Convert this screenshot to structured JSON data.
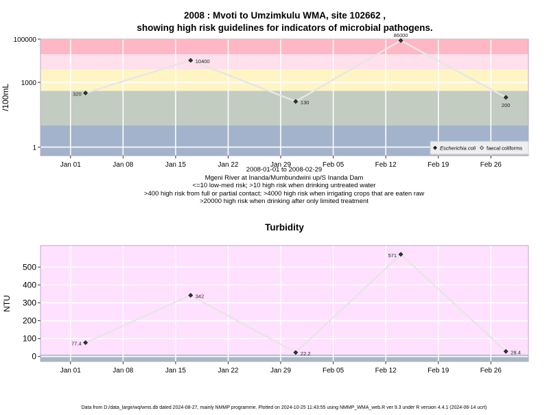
{
  "title": {
    "line1": "2008 : Mvoti to Umzimkulu WMA, site 102662 ,",
    "line2": "showing high risk guidelines for indicators of microbial pathogens."
  },
  "captions": {
    "dates": "2008-01-01 to 2008-02-29",
    "location": "Mgeni River at Inanda/Mumbundwini up/S Inanda Dam",
    "risk1": "<=10 low-med risk; >10 high risk when drinking untreated water",
    "risk2": ">400 high risk from full or partial contact; >4000 high risk when irrigating crops that are eaten raw",
    "risk3": ">20000 high risk when drinking after only limited treatment"
  },
  "footer": "Data from D:/data_large/wq/wms.db dated 2024-08-27, mainly NMMP programme. Plotted on 2024-10-25 11:43:55 using NMMP_WMA_web.R ver 9.3 under R version 4.4.1 (2024-06-14 ucrt)",
  "colors": {
    "band_low": "#a3b3cb",
    "band_green": "#c2ccc0",
    "band_yellow": "#fff5c4",
    "band_pink_light": "#ffe0ec",
    "band_red": "#ffb7c4",
    "turbidity_bg": "#ffe0ff",
    "turbidity_base": "#a9b8c6",
    "line": "#e6e6e6",
    "point": "#333333"
  },
  "chart_data": [
    {
      "type": "line",
      "title": "",
      "ylabel": "/100mL",
      "y_scale": "log10",
      "ylim": [
        0.4,
        100000
      ],
      "xlim": [
        "2007-12-28",
        "2008-03-02"
      ],
      "x_ticks": [
        {
          "date": "2008-01-01",
          "label": "Jan 01"
        },
        {
          "date": "2008-01-08",
          "label": "Jan 08"
        },
        {
          "date": "2008-01-15",
          "label": "Jan 15"
        },
        {
          "date": "2008-01-22",
          "label": "Jan 22"
        },
        {
          "date": "2008-01-29",
          "label": "Jan 29"
        },
        {
          "date": "2008-02-05",
          "label": "Feb 05"
        },
        {
          "date": "2008-02-12",
          "label": "Feb 12"
        },
        {
          "date": "2008-02-19",
          "label": "Feb 19"
        },
        {
          "date": "2008-02-26",
          "label": "Feb 26"
        }
      ],
      "y_ticks": [
        {
          "value": 1,
          "label": "1"
        },
        {
          "value": 1000,
          "label": "1000"
        },
        {
          "value": 100000,
          "label": "100000"
        }
      ],
      "bands": [
        {
          "from": 0.4,
          "to": 10,
          "color": "band_low"
        },
        {
          "from": 10,
          "to": 400,
          "color": "band_green"
        },
        {
          "from": 400,
          "to": 4000,
          "color": "band_yellow"
        },
        {
          "from": 4000,
          "to": 20000,
          "color": "band_pink_light"
        },
        {
          "from": 20000,
          "to": 100000,
          "color": "band_red"
        }
      ],
      "series": [
        {
          "name": "Escherichia coli",
          "points": [
            {
              "x": "2008-01-03",
              "y": 320,
              "label": "320",
              "label_side": "left"
            },
            {
              "x": "2008-01-17",
              "y": 10400,
              "label": "10400",
              "label_side": "right"
            },
            {
              "x": "2008-01-31",
              "y": 130,
              "label": "130",
              "label_side": "right"
            },
            {
              "x": "2008-02-14",
              "y": 86000,
              "label": "86000",
              "label_side": "top"
            },
            {
              "x": "2008-02-28",
              "y": 200,
              "label": "200",
              "label_side": "bottom"
            }
          ]
        }
      ],
      "legend": {
        "placement": "bottom-right",
        "entries": [
          {
            "label": "Escherichia coli",
            "symbol": "filled-diamond",
            "italic": true
          },
          {
            "label": "faecal coliforms",
            "symbol": "open-diamond",
            "italic": false
          }
        ]
      }
    },
    {
      "type": "line",
      "title": "Turbidity",
      "ylabel": "NTU",
      "y_scale": "linear",
      "ylim": [
        -28,
        620
      ],
      "xlim": [
        "2007-12-28",
        "2008-03-02"
      ],
      "x_ticks": [
        {
          "date": "2008-01-01",
          "label": "Jan 01"
        },
        {
          "date": "2008-01-08",
          "label": "Jan 08"
        },
        {
          "date": "2008-01-15",
          "label": "Jan 15"
        },
        {
          "date": "2008-01-22",
          "label": "Jan 22"
        },
        {
          "date": "2008-01-29",
          "label": "Jan 29"
        },
        {
          "date": "2008-02-05",
          "label": "Feb 05"
        },
        {
          "date": "2008-02-12",
          "label": "Feb 12"
        },
        {
          "date": "2008-02-19",
          "label": "Feb 19"
        },
        {
          "date": "2008-02-26",
          "label": "Feb 26"
        }
      ],
      "y_ticks": [
        {
          "value": 0,
          "label": "0"
        },
        {
          "value": 100,
          "label": "100"
        },
        {
          "value": 200,
          "label": "200"
        },
        {
          "value": 300,
          "label": "300"
        },
        {
          "value": 400,
          "label": "400"
        },
        {
          "value": 500,
          "label": "500"
        }
      ],
      "bands": [
        {
          "from": -28,
          "to": 10,
          "color": "turbidity_base"
        },
        {
          "from": 10,
          "to": 620,
          "color": "turbidity_bg"
        }
      ],
      "series": [
        {
          "name": "",
          "points": [
            {
              "x": "2008-01-03",
              "y": 77.4,
              "label": "77.4",
              "label_side": "left"
            },
            {
              "x": "2008-01-17",
              "y": 342,
              "label": "342",
              "label_side": "right"
            },
            {
              "x": "2008-01-31",
              "y": 22.2,
              "label": "22.2",
              "label_side": "right"
            },
            {
              "x": "2008-02-14",
              "y": 571,
              "label": "571",
              "label_side": "left"
            },
            {
              "x": "2008-02-28",
              "y": 28.4,
              "label": "28.4",
              "label_side": "right"
            }
          ]
        }
      ]
    }
  ]
}
